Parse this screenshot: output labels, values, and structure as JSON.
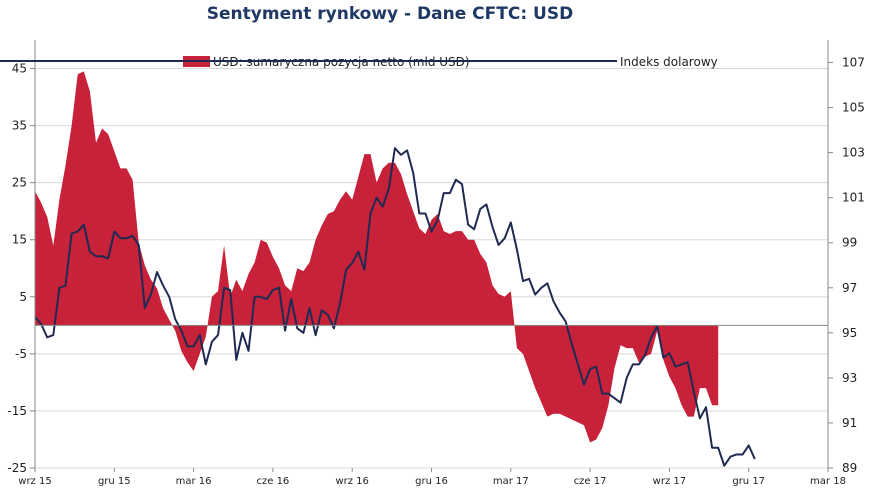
{
  "chart_data": {
    "type": "area+line",
    "title": "Sentyment rynkowy - Dane CFTC:  USD",
    "grid": true,
    "legend_position": "top",
    "colors": {
      "area": "#c8213a",
      "line": "#1f2a52",
      "grid": "#d9d9d9"
    },
    "y_left": {
      "min": -25,
      "max": 50,
      "ticks": [
        45,
        35,
        25,
        15,
        5,
        -5,
        -15,
        -25
      ]
    },
    "y_right": {
      "min": 89,
      "max": 108,
      "ticks": [
        107,
        105,
        103,
        101,
        99,
        97,
        95,
        93,
        91,
        89
      ]
    },
    "x_labels": [
      "wrz 15",
      "gru 15",
      "mar 16",
      "cze 16",
      "wrz 16",
      "gru 16",
      "mar 17",
      "cze 17",
      "wrz 17",
      "gru 17",
      "mar 18"
    ],
    "x_label_pos": [
      0,
      13,
      26,
      39,
      52,
      65,
      78,
      91,
      104,
      117,
      130
    ],
    "series": [
      {
        "name": "USD: sumaryczna pozycja netto (mld USD)",
        "kind": "area",
        "axis": "left",
        "values": [
          23.5,
          21.5,
          19,
          14,
          22,
          28,
          35,
          44,
          44.5,
          41,
          32,
          34.5,
          33.5,
          30.5,
          27.5,
          27.5,
          25.5,
          14.5,
          10.5,
          8,
          6.5,
          3,
          1,
          -1,
          -4.5,
          -6.5,
          -8,
          -5,
          -2,
          5,
          6,
          14,
          5,
          8,
          6,
          9,
          11,
          15,
          14.5,
          12,
          10,
          7,
          6,
          10,
          9.5,
          11,
          15,
          17.5,
          19.5,
          20,
          22,
          23.5,
          22,
          26,
          30,
          30,
          25,
          27.5,
          28.5,
          28.5,
          26.5,
          23,
          20,
          17,
          16,
          18.5,
          19.5,
          16.5,
          16,
          16.5,
          16.5,
          15,
          15,
          12.5,
          11,
          7,
          5.5,
          5,
          6,
          -4,
          -5,
          -8,
          -11,
          -13.5,
          -16,
          -15.5,
          -15.5,
          -16,
          -16.5,
          -17,
          -17.5,
          -20.5,
          -20,
          -18,
          -14,
          -7.5,
          -3.5,
          -4,
          -4,
          -6.5,
          -5.5,
          -5,
          -1,
          -6,
          -9,
          -11,
          -14,
          -16,
          -16,
          -11,
          -11,
          -14,
          -14
        ]
      },
      {
        "name": "Indeks dolarowy",
        "kind": "line",
        "axis": "right",
        "values": [
          95.7,
          95.4,
          94.8,
          94.9,
          97,
          97.1,
          99.4,
          99.5,
          99.8,
          98.6,
          98.4,
          98.4,
          98.3,
          99.5,
          99.2,
          99.2,
          99.3,
          98.9,
          96.1,
          96.7,
          97.7,
          97.1,
          96.6,
          95.6,
          95.1,
          94.4,
          94.4,
          94.9,
          93.6,
          94.6,
          94.9,
          97,
          96.9,
          93.8,
          95,
          94.2,
          96.6,
          96.6,
          96.5,
          96.9,
          97,
          95.1,
          96.5,
          95.2,
          95,
          96.1,
          94.9,
          96,
          95.8,
          95.2,
          96.3,
          97.8,
          98.1,
          98.6,
          97.8,
          100.3,
          101,
          100.6,
          101.4,
          103.2,
          102.9,
          103.1,
          102.1,
          100.3,
          100.3,
          99.5,
          100,
          101.2,
          101.2,
          101.8,
          101.6,
          99.8,
          99.6,
          100.5,
          100.7,
          99.7,
          98.9,
          99.2,
          99.9,
          98.7,
          97.3,
          97.4,
          96.7,
          97,
          97.2,
          96.4,
          95.9,
          95.5,
          94.5,
          93.6,
          92.7,
          93.4,
          93.5,
          92.3,
          92.3,
          92.1,
          91.9,
          93,
          93.6,
          93.6,
          94,
          94.8,
          95.3,
          93.9,
          94.1,
          93.5,
          93.6,
          93.7,
          92.4,
          91.2,
          91.7,
          89.9,
          89.9,
          89.1,
          89.5,
          89.6,
          89.6,
          90,
          89.4
        ]
      }
    ]
  }
}
